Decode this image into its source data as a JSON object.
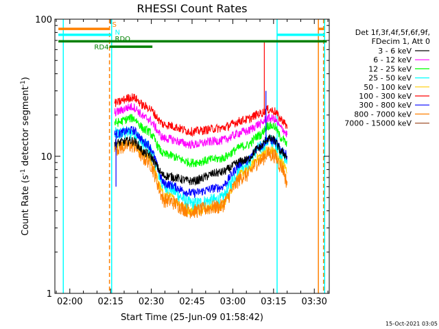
{
  "chart_data": {
    "type": "line",
    "title": "RHESSI Count Rates",
    "xlabel": "Start Time (25-Jun-09 01:58:42)",
    "ylabel_main": "Count Rate (s",
    "ylabel_sup1": "-1",
    "ylabel_mid": " detector segment",
    "ylabel_sup2": "-1",
    "ylabel_end": ")",
    "yscale": "log",
    "ylim": [
      1,
      100
    ],
    "xlim_minutes": [
      -5.5,
      95.5
    ],
    "x_ticks": [
      {
        "label": "02:00",
        "minute": 0
      },
      {
        "label": "02:15",
        "minute": 15
      },
      {
        "label": "02:30",
        "minute": 30
      },
      {
        "label": "02:45",
        "minute": 45
      },
      {
        "label": "03:00",
        "minute": 60
      },
      {
        "label": "03:15",
        "minute": 75
      },
      {
        "label": "03:30",
        "minute": 90
      }
    ],
    "y_ticks": [
      {
        "label": "1",
        "value": 1
      },
      {
        "label": "10",
        "value": 10
      },
      {
        "label": "100",
        "value": 100
      }
    ],
    "legend_header": [
      "Det 1f,3f,4f,5f,6f,9f,",
      "FDecim 1, Att 0"
    ],
    "legend_placement": "right",
    "series": [
      {
        "name": "3 - 6 keV",
        "color": "#000000",
        "base": [
          [
            16.5,
            12.5
          ],
          [
            23,
            13
          ],
          [
            28,
            10.5
          ],
          [
            35,
            7.2
          ],
          [
            45,
            6.6
          ],
          [
            55,
            7.6
          ],
          [
            65,
            9.4
          ],
          [
            70,
            11.6
          ],
          [
            73,
            13.5
          ],
          [
            75,
            13.2
          ],
          [
            78,
            10.7
          ],
          [
            80,
            10
          ]
        ]
      },
      {
        "name": "6 - 12 keV",
        "color": "#ff00ff",
        "base": [
          [
            16.5,
            21
          ],
          [
            23,
            23
          ],
          [
            28,
            19
          ],
          [
            35,
            13.5
          ],
          [
            45,
            12.2
          ],
          [
            55,
            13
          ],
          [
            65,
            15.2
          ],
          [
            70,
            17.2
          ],
          [
            73,
            19
          ],
          [
            75,
            18.8
          ],
          [
            78,
            16
          ],
          [
            80,
            14.5
          ]
        ]
      },
      {
        "name": "12 - 25 keV",
        "color": "#00ff00",
        "base": [
          [
            16.5,
            17.5
          ],
          [
            23,
            19
          ],
          [
            28,
            15.5
          ],
          [
            35,
            10.3
          ],
          [
            45,
            9
          ],
          [
            55,
            9.6
          ],
          [
            65,
            12
          ],
          [
            70,
            14.3
          ],
          [
            73,
            16.8
          ],
          [
            75,
            16.6
          ],
          [
            78,
            13.6
          ],
          [
            80,
            12.2
          ]
        ]
      },
      {
        "name": "25 - 50 keV",
        "color": "#00ffff",
        "base": [
          [
            16.5,
            14.5
          ],
          [
            23,
            15
          ],
          [
            28,
            12
          ],
          [
            35,
            6
          ],
          [
            45,
            4.5
          ],
          [
            55,
            4.8
          ],
          [
            65,
            8.8
          ],
          [
            70,
            11.5
          ],
          [
            73,
            13
          ],
          [
            75,
            12.8
          ],
          [
            78,
            10.5
          ],
          [
            80,
            9.2
          ]
        ]
      },
      {
        "name": "50 - 100 keV",
        "color": "#ffcc00",
        "base": [
          [
            16.5,
            12
          ],
          [
            23,
            12.5
          ],
          [
            28,
            10
          ],
          [
            35,
            5.2
          ],
          [
            45,
            4
          ],
          [
            55,
            4.3
          ],
          [
            65,
            7.8
          ],
          [
            70,
            10
          ],
          [
            73,
            11.2
          ],
          [
            75,
            11
          ],
          [
            78,
            9
          ],
          [
            80,
            8
          ]
        ]
      },
      {
        "name": "100 - 300 keV",
        "color": "#ff0000",
        "base": [
          [
            16.5,
            24.5
          ],
          [
            23,
            27
          ],
          [
            28,
            23
          ],
          [
            35,
            17
          ],
          [
            45,
            15.2
          ],
          [
            55,
            16
          ],
          [
            65,
            18.5
          ],
          [
            70,
            20.5
          ],
          [
            73,
            22
          ],
          [
            75,
            21.5
          ],
          [
            78,
            18.5
          ],
          [
            80,
            16.5
          ]
        ]
      },
      {
        "name": "300 - 800 keV",
        "color": "#0000ff",
        "base": [
          [
            16.5,
            14.5
          ],
          [
            23,
            15.5
          ],
          [
            28,
            12.5
          ],
          [
            35,
            6.3
          ],
          [
            45,
            5.4
          ],
          [
            55,
            5.9
          ],
          [
            65,
            9.3
          ],
          [
            70,
            11.8
          ],
          [
            73,
            13.3
          ],
          [
            75,
            13
          ],
          [
            78,
            11.2
          ],
          [
            80,
            10.2
          ]
        ]
      },
      {
        "name": "800 - 7000 keV",
        "color": "#ff8000",
        "base": [
          [
            16.5,
            11.5
          ],
          [
            23,
            12
          ],
          [
            28,
            9.5
          ],
          [
            35,
            4.8
          ],
          [
            45,
            4
          ],
          [
            55,
            4.3
          ],
          [
            65,
            7.3
          ],
          [
            70,
            9.3
          ],
          [
            73,
            10.5
          ],
          [
            75,
            10.2
          ],
          [
            78,
            8.4
          ],
          [
            80,
            6.5
          ]
        ]
      },
      {
        "name": "7000 - 15000 keV",
        "color": "#a0522d",
        "base": []
      }
    ],
    "spikes": [
      {
        "series": "100 - 300 keV",
        "minute": 71.6,
        "value": 70
      },
      {
        "series": "300 - 800 keV",
        "minute": 72.2,
        "value": 30
      },
      {
        "series": "300 - 800 keV",
        "minute": 17,
        "value": 6
      }
    ],
    "flags": [
      {
        "label": "S",
        "color": "#ff8000",
        "value": 85,
        "segments": [
          [
            -4.2,
            14.5
          ],
          [
            91.5,
            93.4
          ]
        ]
      },
      {
        "label": "N",
        "color": "#00ffff",
        "value": 77,
        "segments": [
          [
            -4.2,
            15.4
          ],
          [
            76.3,
            93.8
          ]
        ]
      },
      {
        "label": "RDO",
        "color": "#008000",
        "value": 69,
        "segments": [
          [
            -4.2,
            94.6
          ]
        ]
      },
      {
        "label": "RD4",
        "color": "#008000",
        "value": 63,
        "segments": [
          [
            14.6,
            30.4
          ]
        ]
      }
    ],
    "vlines": [
      {
        "minute": -2.4,
        "color": "#00ffff",
        "style": "solid"
      },
      {
        "minute": 14.6,
        "color": "#ff8000",
        "style": "dashed"
      },
      {
        "minute": 15.4,
        "color": "#00ffff",
        "style": "solid"
      },
      {
        "minute": 76.3,
        "color": "#00ffff",
        "style": "solid"
      },
      {
        "minute": 91.5,
        "color": "#ff8000",
        "style": "solid"
      },
      {
        "minute": 93.4,
        "color": "#ff8000",
        "style": "dashed"
      },
      {
        "minute": 93.8,
        "color": "#00ffff",
        "style": "solid"
      }
    ]
  },
  "footer": {
    "date_stamp": "15-Oct-2021 03:05"
  }
}
